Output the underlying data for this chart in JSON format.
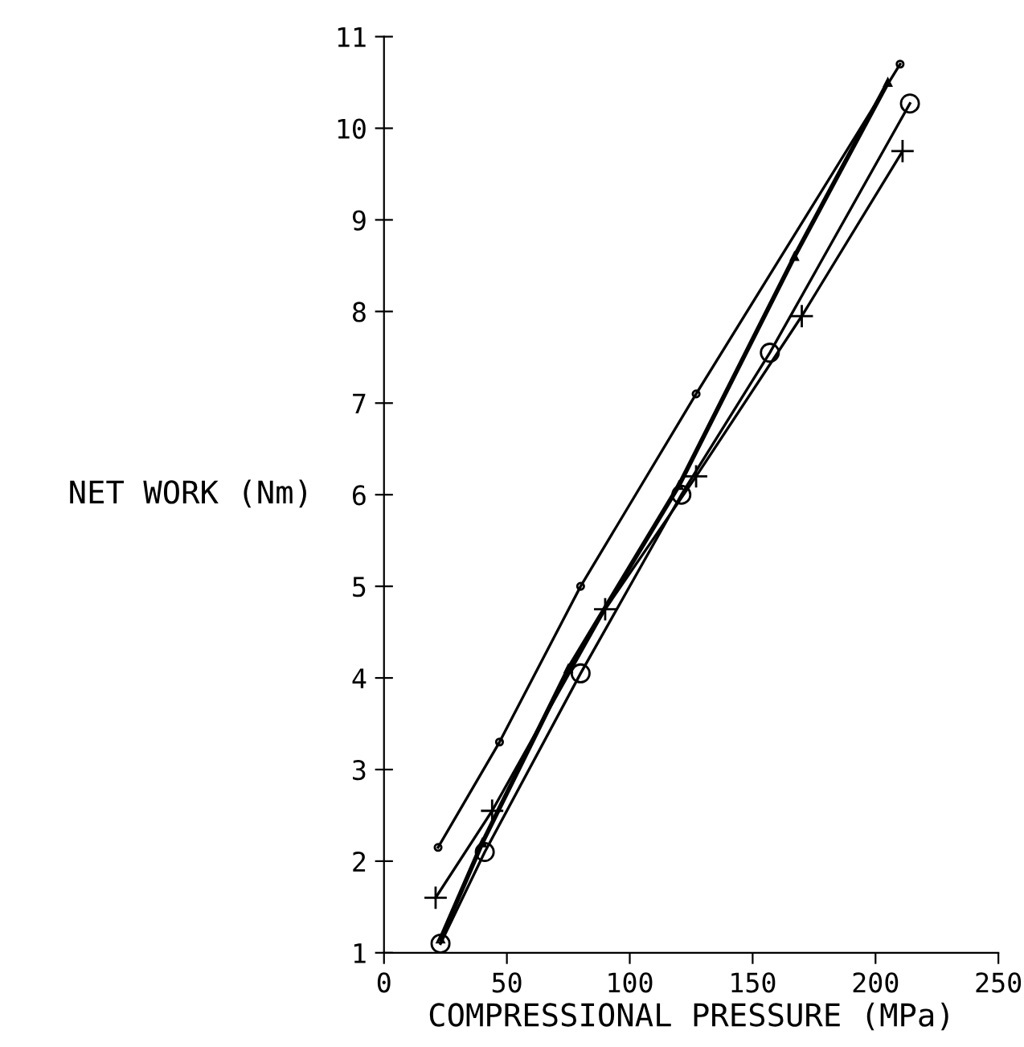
{
  "chart_data": {
    "type": "line",
    "xlabel": "COMPRESSIONAL PRESSURE (MPa)",
    "ylabel": "NET WORK (Nm)",
    "xlim": [
      0,
      250
    ],
    "xticks": [
      0,
      50,
      100,
      150,
      200,
      250
    ],
    "ylim": [
      1,
      11
    ],
    "yticks": [
      1,
      2,
      3,
      4,
      5,
      6,
      7,
      8,
      9,
      10,
      11
    ],
    "grid": false,
    "legend": false,
    "series": [
      {
        "color": "#000000",
        "marker": "circle",
        "x": [
          23,
          41,
          80,
          121,
          157,
          214
        ],
        "values": [
          1.1,
          2.1,
          4.05,
          6.0,
          7.55,
          10.27
        ]
      },
      {
        "color": "#000000",
        "marker": "cross",
        "x": [
          21,
          44,
          90,
          127,
          170,
          211
        ],
        "values": [
          1.6,
          2.55,
          4.75,
          6.2,
          7.95,
          9.75
        ]
      },
      {
        "color": "#000000",
        "marker": "circle",
        "x": [
          22,
          47,
          80,
          127,
          210
        ],
        "values": [
          2.15,
          3.3,
          5.0,
          7.1,
          10.7
        ]
      },
      {
        "color": "#000000",
        "marker": "triangle",
        "x": [
          23,
          40,
          75,
          120,
          167,
          205
        ],
        "values": [
          1.15,
          2.2,
          4.1,
          6.1,
          8.6,
          10.5
        ]
      }
    ]
  }
}
